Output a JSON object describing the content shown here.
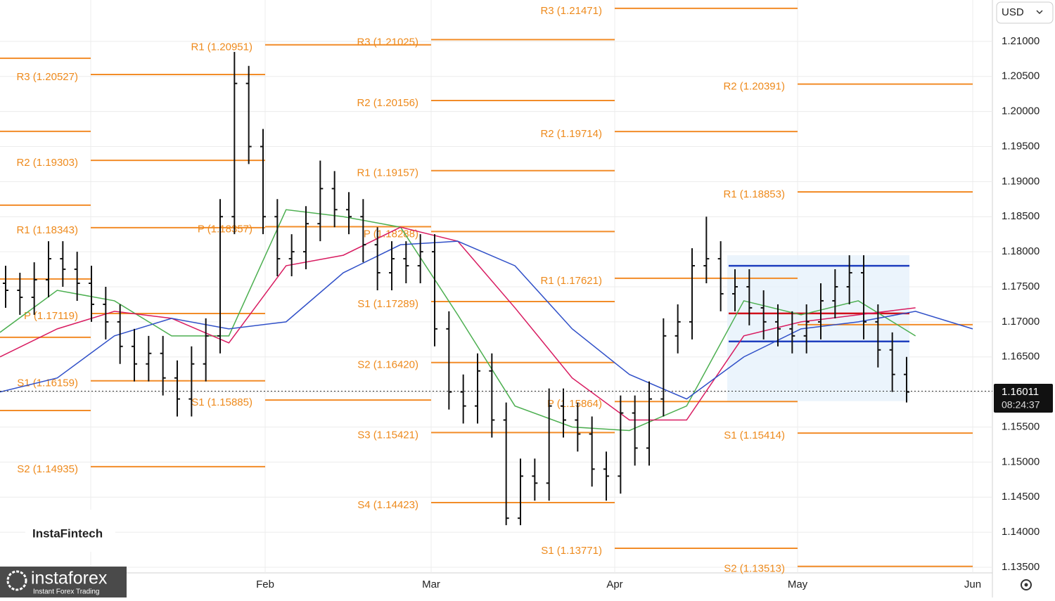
{
  "chart_data": {
    "type": "ohlc",
    "currency": "USD",
    "ylim": [
      1.1342,
      1.2159
    ],
    "yticks": [
      {
        "value": 1.21,
        "label": "1.21000"
      },
      {
        "value": 1.205,
        "label": "1.20500"
      },
      {
        "value": 1.2,
        "label": "1.20000"
      },
      {
        "value": 1.195,
        "label": "1.19500"
      },
      {
        "value": 1.19,
        "label": "1.19000"
      },
      {
        "value": 1.185,
        "label": "1.18500"
      },
      {
        "value": 1.18,
        "label": "1.18000"
      },
      {
        "value": 1.175,
        "label": "1.17500"
      },
      {
        "value": 1.17,
        "label": "1.17000"
      },
      {
        "value": 1.165,
        "label": "1.16500"
      },
      {
        "value": 1.16,
        "label": "1.16000"
      },
      {
        "value": 1.155,
        "label": "1.15500"
      },
      {
        "value": 1.15,
        "label": "1.15000"
      },
      {
        "value": 1.145,
        "label": "1.14500"
      },
      {
        "value": 1.14,
        "label": "1.14000"
      },
      {
        "value": 1.135,
        "label": "1.13500"
      }
    ],
    "x_labels": [
      "Feb",
      "Mar",
      "Apr",
      "May",
      "Jun"
    ],
    "grid": true,
    "bar_color": "#111111",
    "ohlc": {
      "open": [
        1.1755,
        1.1745,
        1.1735,
        1.176,
        1.179,
        1.1775,
        1.1755,
        1.1725,
        1.17,
        1.1665,
        1.164,
        1.1655,
        1.162,
        1.159,
        1.164,
        1.168,
        1.185,
        1.204,
        1.195,
        1.185,
        1.179,
        1.18,
        1.184,
        1.189,
        1.186,
        1.185,
        1.181,
        1.177,
        1.179,
        1.178,
        1.18,
        1.169,
        1.16,
        1.158,
        1.163,
        1.156,
        1.142,
        1.148,
        1.147,
        1.158,
        1.156,
        1.154,
        1.149,
        1.148,
        1.157,
        1.152,
        1.159,
        1.168,
        1.17,
        1.178,
        1.179,
        1.174,
        1.175,
        1.172,
        1.17,
        1.169,
        1.168,
        1.17,
        1.173,
        1.175,
        1.177,
        1.17,
        1.166,
        1.1625
      ],
      "high": [
        1.178,
        1.177,
        1.1785,
        1.1815,
        1.1815,
        1.18,
        1.178,
        1.175,
        1.1725,
        1.169,
        1.168,
        1.168,
        1.1645,
        1.1665,
        1.1705,
        1.1875,
        1.2085,
        1.2065,
        1.1975,
        1.1875,
        1.1825,
        1.1865,
        1.193,
        1.1915,
        1.1885,
        1.1875,
        1.1835,
        1.1815,
        1.1815,
        1.1825,
        1.1825,
        1.1715,
        1.1625,
        1.1655,
        1.1655,
        1.1585,
        1.1505,
        1.1505,
        1.1605,
        1.1605,
        1.1585,
        1.1565,
        1.1515,
        1.1595,
        1.1595,
        1.1615,
        1.1705,
        1.1725,
        1.1805,
        1.185,
        1.1815,
        1.1775,
        1.1775,
        1.1745,
        1.1725,
        1.1715,
        1.1725,
        1.1755,
        1.1775,
        1.1795,
        1.1795,
        1.1725,
        1.1685,
        1.165
      ],
      "low": [
        1.172,
        1.171,
        1.171,
        1.1735,
        1.175,
        1.173,
        1.17,
        1.1675,
        1.164,
        1.1615,
        1.1615,
        1.1595,
        1.1565,
        1.1565,
        1.1615,
        1.1655,
        1.1825,
        1.1925,
        1.1825,
        1.1765,
        1.1765,
        1.1775,
        1.1815,
        1.1835,
        1.1825,
        1.1785,
        1.1745,
        1.1745,
        1.1755,
        1.1755,
        1.1665,
        1.1575,
        1.1555,
        1.1555,
        1.1535,
        1.141,
        1.141,
        1.1445,
        1.1445,
        1.1535,
        1.1515,
        1.1465,
        1.1445,
        1.1455,
        1.1495,
        1.1495,
        1.1565,
        1.1655,
        1.1675,
        1.1755,
        1.1715,
        1.1715,
        1.1695,
        1.1675,
        1.1665,
        1.1655,
        1.1655,
        1.1675,
        1.1705,
        1.1725,
        1.1675,
        1.1635,
        1.16,
        1.1585
      ],
      "close": [
        1.1745,
        1.1735,
        1.176,
        1.179,
        1.1775,
        1.1755,
        1.1725,
        1.17,
        1.1665,
        1.164,
        1.1655,
        1.162,
        1.159,
        1.164,
        1.168,
        1.185,
        1.204,
        1.195,
        1.185,
        1.179,
        1.18,
        1.184,
        1.189,
        1.186,
        1.185,
        1.181,
        1.177,
        1.179,
        1.178,
        1.18,
        1.169,
        1.16,
        1.158,
        1.163,
        1.156,
        1.142,
        1.148,
        1.147,
        1.158,
        1.156,
        1.154,
        1.149,
        1.148,
        1.157,
        1.152,
        1.159,
        1.168,
        1.17,
        1.178,
        1.179,
        1.174,
        1.175,
        1.172,
        1.17,
        1.169,
        1.168,
        1.17,
        1.173,
        1.175,
        1.177,
        1.17,
        1.166,
        1.1625,
        1.16
      ]
    },
    "moving_averages": [
      {
        "color": "#4caf50",
        "values": [
          1.1685,
          1.1745,
          1.173,
          1.168,
          1.168,
          1.186,
          1.185,
          1.1835,
          1.171,
          1.158,
          1.155,
          1.1545,
          1.158,
          1.173,
          1.171,
          1.173,
          1.168,
          null
        ]
      },
      {
        "color": "#d81b60",
        "values": [
          1.165,
          1.169,
          1.1715,
          1.1705,
          1.167,
          1.178,
          1.1795,
          1.1835,
          1.1815,
          1.172,
          1.162,
          1.156,
          1.156,
          1.168,
          1.17,
          1.171,
          1.172,
          null
        ]
      },
      {
        "color": "#3050c8",
        "values": [
          1.16,
          1.162,
          1.168,
          1.1705,
          1.169,
          1.17,
          1.177,
          1.181,
          1.1815,
          1.178,
          1.169,
          1.1625,
          1.159,
          1.165,
          1.169,
          1.17,
          1.1715,
          1.169
        ]
      }
    ],
    "pivot_color": "#f28c28",
    "pivot_segments": [
      {
        "levels": [
          {
            "value": 1.20759,
            "label": null
          },
          {
            "value": 1.19717,
            "label": null
          },
          {
            "value": 1.18664,
            "label": null
          },
          {
            "value": 1.17611,
            "label": null
          },
          {
            "value": 1.16779,
            "label": null
          },
          {
            "value": 1.15736,
            "label": null
          }
        ]
      },
      {
        "levels": [
          {
            "value": 1.20527,
            "label": "R3 (1.20527)"
          },
          {
            "value": 1.19303,
            "label": "R2 (1.19303)"
          },
          {
            "value": 1.18343,
            "label": "R1 (1.18343)"
          },
          {
            "value": 1.17119,
            "label": "P (1.17119)"
          },
          {
            "value": 1.16159,
            "label": "S1 (1.16159)"
          },
          {
            "value": 1.14935,
            "label": "S2 (1.14935)"
          }
        ]
      },
      {
        "levels": [
          {
            "value": 1.20951,
            "label": "R1 (1.20951)"
          },
          {
            "value": 1.18357,
            "label": "P (1.18357)"
          },
          {
            "value": 1.15885,
            "label": "S1 (1.15885)"
          }
        ]
      },
      {
        "levels": [
          {
            "value": 1.21025,
            "label": "R3 (1.21025)"
          },
          {
            "value": 1.20156,
            "label": "R2 (1.20156)"
          },
          {
            "value": 1.19157,
            "label": "R1 (1.19157)"
          },
          {
            "value": 1.18288,
            "label": "P (1.18288)"
          },
          {
            "value": 1.17289,
            "label": "S1 (1.17289)"
          },
          {
            "value": 1.1642,
            "label": "S2 (1.16420)"
          },
          {
            "value": 1.15421,
            "label": "S3 (1.15421)"
          },
          {
            "value": 1.14423,
            "label": "S4 (1.14423)"
          }
        ]
      },
      {
        "levels": [
          {
            "value": 1.21471,
            "label": "R3 (1.21471)"
          },
          {
            "value": 1.19714,
            "label": "R2 (1.19714)"
          },
          {
            "value": 1.17621,
            "label": "R1 (1.17621)"
          },
          {
            "value": 1.15864,
            "label": "P (1.15864)"
          },
          {
            "value": 1.13771,
            "label": "S1 (1.13771)"
          }
        ]
      },
      {
        "levels": [
          {
            "value": 1.20391,
            "label": "R2 (1.20391)"
          },
          {
            "value": 1.18853,
            "label": "R1 (1.18853)"
          },
          {
            "value": 1.1696,
            "label": null
          },
          {
            "value": 1.15414,
            "label": "S1 (1.15414)"
          },
          {
            "value": 1.13513,
            "label": "S2 (1.13513)"
          }
        ]
      }
    ],
    "volume_profile": {
      "range": [
        1.1587,
        1.1795
      ],
      "levels": [
        {
          "value": 1.178,
          "color": "#1f3fbf"
        },
        {
          "value": 1.1712,
          "color": "#d0101a"
        },
        {
          "value": 1.1672,
          "color": "#1f3fbf"
        }
      ]
    },
    "current_price": 1.16011,
    "timer": "08:24:37",
    "branding": {
      "fintech": "InstaFintech",
      "forex": "instaforex",
      "tagline": "Instant Forex Trading"
    }
  }
}
